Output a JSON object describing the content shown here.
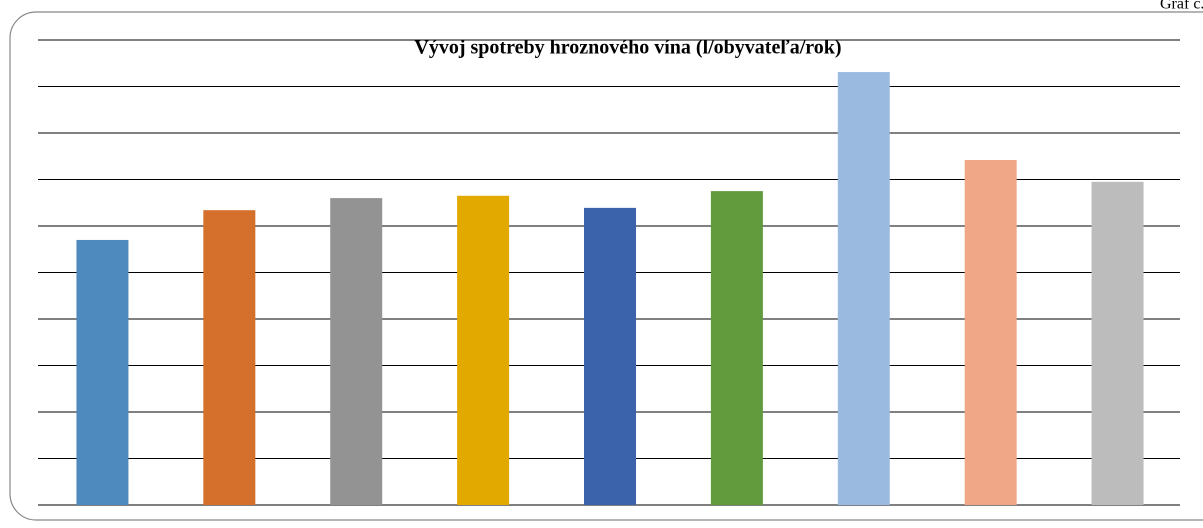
{
  "corner_note": "Graf č.",
  "chart_data": {
    "type": "bar",
    "title": "Vývoj spotreby hroznového vína (l/obyvateľa/rok)",
    "categories": [
      null,
      null,
      null,
      null,
      null,
      null,
      null,
      null,
      null
    ],
    "values": [
      5.7,
      6.34,
      6.6,
      6.65,
      6.39,
      6.75,
      9.31,
      7.42,
      6.95
    ],
    "colors": [
      "#4f8abf",
      "#d46f2c",
      "#939393",
      "#e2a900",
      "#3b63ac",
      "#629a3e",
      "#9abae0",
      "#f0a788",
      "#bcbcbc"
    ],
    "ylim": [
      0,
      10
    ],
    "yticks": [
      0,
      1,
      2,
      3,
      4,
      5,
      6,
      7,
      8,
      9,
      10
    ],
    "grid": true
  }
}
